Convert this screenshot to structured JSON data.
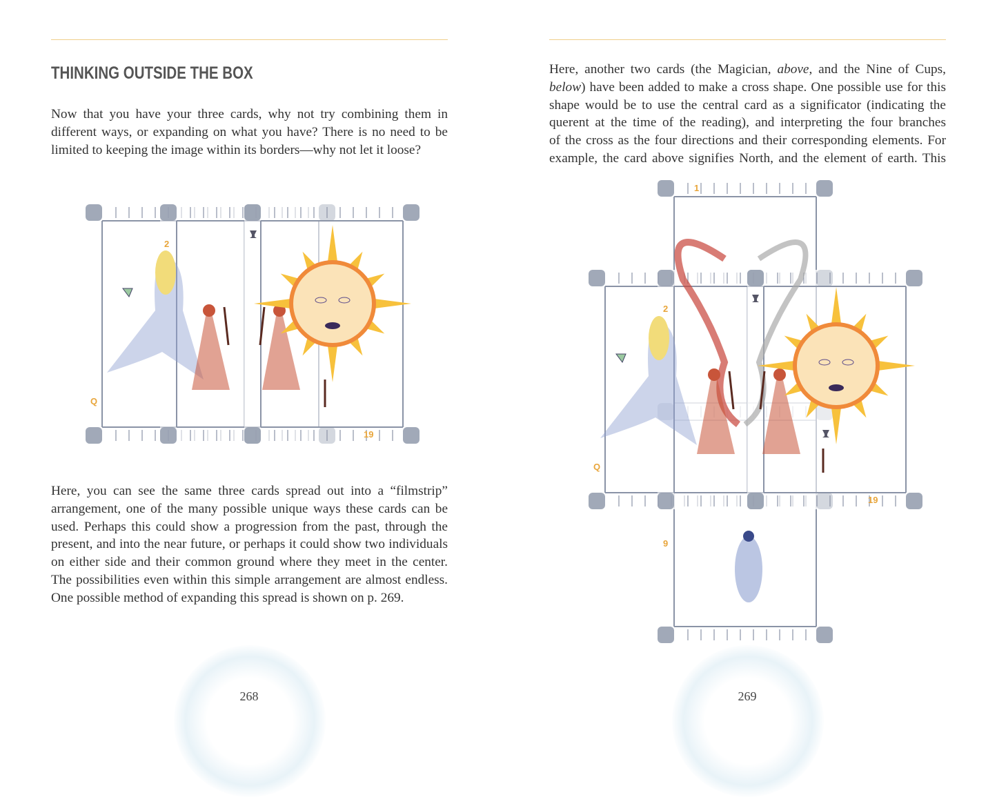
{
  "left_page": {
    "heading": "THINKING OUTSIDE THE BOX",
    "intro_lines": [
      "Now that you have your three cards, why not try combining them in",
      "different ways, or expanding on what you have? There is no need to be",
      "limited to keeping the image within its borders—why not let it loose?"
    ],
    "body_lines": [
      "Here, you can see the same three cards spread out into a “filmstrip”",
      "arrangement, one of the many possible unique ways these cards can be",
      "used. Perhaps this could show a progression from the past, through the",
      "present, and into the near future, or perhaps it could show two individuals",
      "on either side and their common ground where they meet in the center.",
      "The possibilities even within this simple arrangement are almost endless.",
      "One possible method of expanding this spread is shown on p. 269."
    ],
    "figure_card_labels": {
      "queen": "Q",
      "two": "2",
      "sun": "19"
    },
    "page_number": "268"
  },
  "right_page": {
    "body_lines": [
      [
        "Here, another two cards (the Magician, ",
        {
          "i": "above"
        },
        ", and the Nine of Cups,"
      ],
      [
        {
          "i": "below"
        },
        ") have been added to make a cross shape. One possible use for this"
      ],
      [
        "shape would be to use the central card as a significator (indicating the"
      ],
      [
        "querent at the time of the reading), and interpreting the four branches"
      ],
      [
        "of the cross as the four directions and their corresponding elements. For"
      ],
      [
        "example, the card above signifies North, and the element of earth. This"
      ]
    ],
    "figure_card_labels": {
      "magician": "1",
      "two": "2",
      "queen": "Q",
      "sun": "19",
      "nine": "9"
    },
    "page_number": "269"
  },
  "colors": {
    "rule": "#f0cf8a",
    "card_frame": "#8a93a6",
    "card_number": "#e8a53a",
    "sun": "#f08a3a",
    "figure_red": "#c8553a",
    "queen_blue": "#8ea0d0"
  }
}
